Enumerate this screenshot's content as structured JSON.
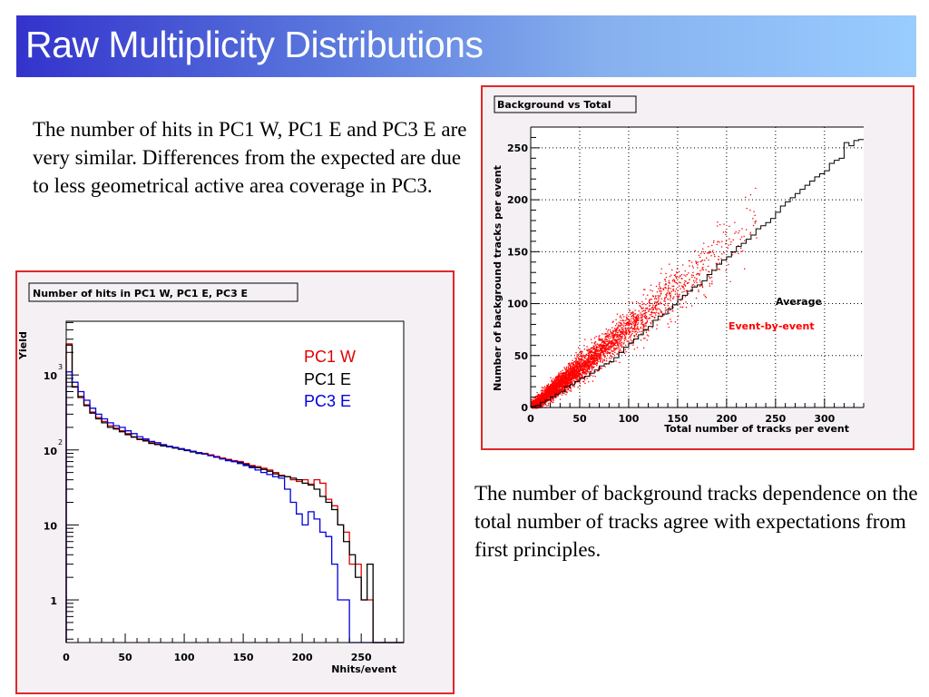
{
  "slide": {
    "title": "Raw Multiplicity Distributions",
    "text_left": "The number of hits in PC1 W, PC1 E and PC3 E are very similar. Differences from the expected are due to less geometrical active area coverage in PC3.",
    "text_right": "The number of background tracks dependence on the total number of tracks agree with expectations from first principles."
  },
  "colors": {
    "title_gradient_start": "#3333cc",
    "title_gradient_end": "#99ccff",
    "panel_border": "#e02828",
    "pc1w": "#e00000",
    "pc1e": "#000000",
    "pc3e": "#0000e0",
    "scatter": "#ff0000"
  },
  "chart_data": [
    {
      "type": "line",
      "subtype": "step-histogram",
      "title": "Number of hits in PC1 W, PC1 E, PC3 E",
      "xlabel": "Nhits/event",
      "ylabel": "Yield",
      "yscale": "log",
      "xlim": [
        0,
        286
      ],
      "ylim": [
        0.27,
        5200
      ],
      "xticks": [
        "0",
        "50",
        "100",
        "150",
        "200",
        "250"
      ],
      "yticks": [
        {
          "value": 1000,
          "label": "10",
          "exp": "3"
        },
        {
          "value": 100,
          "label": "10",
          "exp": "2"
        },
        {
          "value": 10,
          "label": "10",
          "exp": ""
        },
        {
          "value": 1,
          "label": "1",
          "exp": ""
        }
      ],
      "bin_width": 5,
      "legend": [
        "PC1 W",
        "PC1 E",
        "PC3 E"
      ],
      "legend_position": "top-right",
      "grid": false,
      "series": [
        {
          "name": "PC1 W",
          "values": [
            2600,
            700,
            520,
            400,
            320,
            270,
            240,
            210,
            195,
            180,
            165,
            150,
            140,
            135,
            125,
            120,
            115,
            112,
            108,
            104,
            100,
            96,
            92,
            90,
            86,
            82,
            78,
            75,
            72,
            70,
            66,
            62,
            60,
            57,
            54,
            50,
            46,
            44,
            40,
            38,
            40,
            35,
            40,
            36,
            22,
            18,
            10,
            8,
            3,
            3,
            1,
            1,
            0,
            0,
            0,
            0,
            0
          ]
        },
        {
          "name": "PC1 E",
          "values": [
            2500,
            690,
            500,
            390,
            310,
            260,
            230,
            200,
            190,
            175,
            160,
            148,
            138,
            132,
            122,
            118,
            113,
            110,
            106,
            102,
            98,
            94,
            90,
            88,
            84,
            80,
            76,
            73,
            70,
            68,
            64,
            60,
            58,
            55,
            52,
            48,
            45,
            44,
            42,
            40,
            36,
            34,
            30,
            24,
            20,
            16,
            10,
            6,
            4,
            2,
            1,
            3,
            0,
            0,
            0,
            0,
            0
          ]
        },
        {
          "name": "PC3 E",
          "values": [
            1100,
            800,
            600,
            460,
            360,
            300,
            260,
            230,
            210,
            200,
            180,
            165,
            150,
            140,
            130,
            125,
            118,
            112,
            108,
            104,
            100,
            96,
            92,
            88,
            84,
            80,
            76,
            72,
            70,
            66,
            62,
            58,
            54,
            50,
            47,
            44,
            42,
            30,
            20,
            14,
            10,
            15,
            12,
            8,
            7,
            3,
            1,
            1,
            0,
            0,
            0,
            0,
            0,
            0,
            0,
            0,
            0
          ]
        }
      ]
    },
    {
      "type": "scatter",
      "title": "Background vs Total",
      "xlabel": "Total number of tracks per event",
      "ylabel": "Number of background tracks per event",
      "xlim": [
        0,
        340
      ],
      "ylim": [
        0,
        270
      ],
      "xticks": [
        "0",
        "50",
        "100",
        "150",
        "200",
        "250",
        "300"
      ],
      "yticks": [
        "0",
        "50",
        "100",
        "150",
        "200",
        "250"
      ],
      "grid": true,
      "annotations": [
        {
          "text": "Average",
          "color": "#000000"
        },
        {
          "text": "Event-by-event",
          "color": "#ff0000"
        }
      ],
      "series": [
        {
          "name": "Event-by-event",
          "type": "scatter",
          "relation": "y ≈ 0.78·x, spread grows with x",
          "n_points_approx": 6000
        },
        {
          "name": "Average",
          "type": "step-profile",
          "bin_width": 5,
          "x": [
            0,
            5,
            10,
            15,
            20,
            25,
            30,
            35,
            40,
            45,
            50,
            55,
            60,
            65,
            70,
            75,
            80,
            85,
            90,
            95,
            100,
            105,
            110,
            115,
            120,
            125,
            130,
            135,
            140,
            145,
            150,
            155,
            160,
            165,
            170,
            175,
            180,
            185,
            190,
            195,
            200,
            205,
            210,
            215,
            220,
            225,
            230,
            235,
            240,
            245,
            250,
            255,
            260,
            265,
            270,
            275,
            280,
            285,
            290,
            295,
            300,
            305,
            310,
            315,
            320,
            325,
            330,
            335
          ],
          "y": [
            1,
            2,
            5,
            7,
            10,
            13,
            15,
            20,
            22,
            25,
            28,
            30,
            33,
            36,
            40,
            42,
            44,
            48,
            53,
            58,
            62,
            66,
            70,
            75,
            78,
            84,
            88,
            90,
            95,
            99,
            104,
            108,
            112,
            116,
            118,
            122,
            128,
            132,
            138,
            142,
            145,
            150,
            155,
            158,
            162,
            166,
            172,
            175,
            178,
            182,
            188,
            194,
            198,
            202,
            206,
            210,
            214,
            218,
            222,
            225,
            228,
            235,
            238,
            240,
            255,
            252,
            257,
            258
          ]
        }
      ]
    }
  ]
}
